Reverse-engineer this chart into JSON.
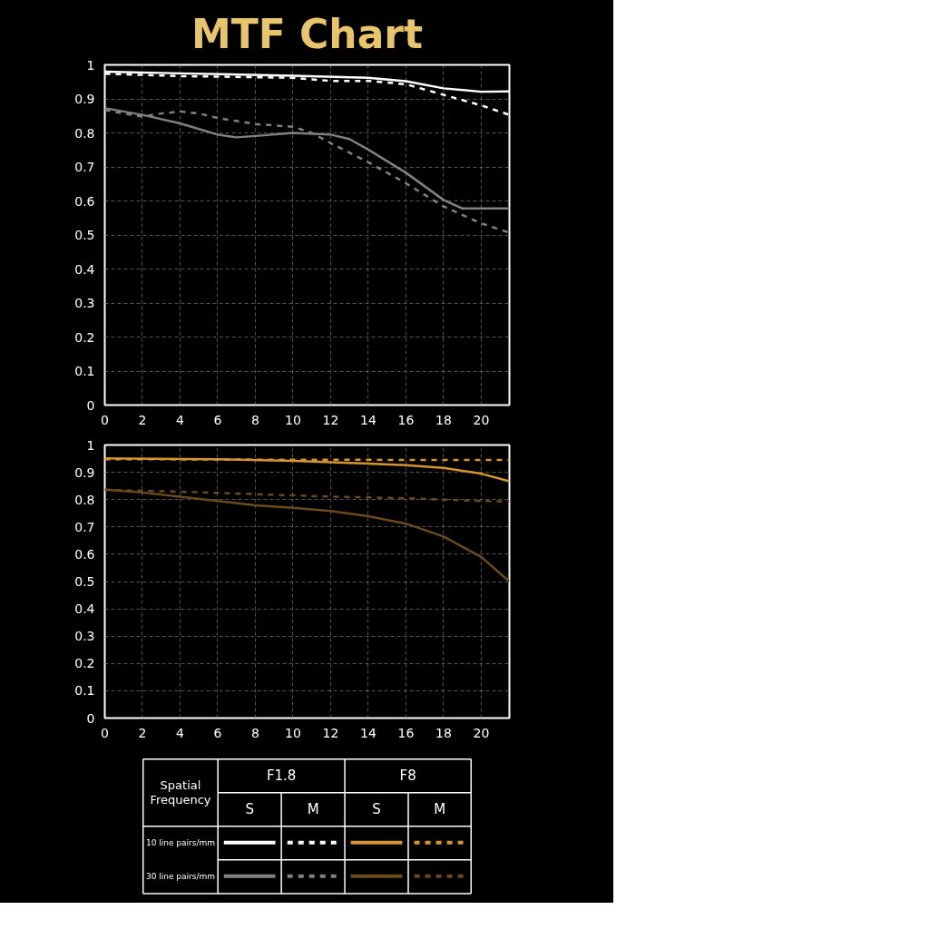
{
  "chart_data": [
    {
      "type": "line",
      "title": "MTF Chart",
      "xlim": [
        0,
        21.5
      ],
      "ylim": [
        0,
        1
      ],
      "xticks": [
        0,
        2,
        4,
        6,
        8,
        10,
        12,
        14,
        16,
        18,
        20
      ],
      "yticks": [
        0,
        0.1,
        0.2,
        0.3,
        0.4,
        0.5,
        0.6,
        0.7,
        0.8,
        0.9,
        1
      ],
      "grid": true,
      "series": [
        {
          "color": "#ffffff",
          "line_style": "solid",
          "x": [
            0,
            4,
            10,
            14,
            16,
            18,
            20,
            21.5
          ],
          "values": [
            0.98,
            0.975,
            0.968,
            0.962,
            0.952,
            0.931,
            0.921,
            0.922
          ]
        },
        {
          "color": "#ffffff",
          "line_style": "dashed",
          "x": [
            0,
            4,
            10,
            12,
            14,
            16,
            18,
            20,
            21.5
          ],
          "values": [
            0.974,
            0.967,
            0.962,
            0.953,
            0.953,
            0.943,
            0.912,
            0.881,
            0.853
          ]
        },
        {
          "color": "#808080",
          "line_style": "solid",
          "x": [
            0,
            2,
            4,
            6,
            7,
            8,
            10,
            12,
            13,
            14,
            16,
            18,
            19,
            20,
            21.5
          ],
          "values": [
            0.873,
            0.853,
            0.828,
            0.795,
            0.787,
            0.791,
            0.8,
            0.795,
            0.782,
            0.751,
            0.683,
            0.603,
            0.578,
            0.578,
            0.578
          ]
        },
        {
          "color": "#808080",
          "line_style": "dashed",
          "x": [
            0,
            2,
            3,
            4,
            5,
            6,
            8,
            10,
            11,
            12,
            14,
            16,
            18,
            20,
            21.5
          ],
          "values": [
            0.867,
            0.848,
            0.857,
            0.863,
            0.857,
            0.844,
            0.826,
            0.818,
            0.8,
            0.77,
            0.714,
            0.652,
            0.584,
            0.534,
            0.507
          ]
        }
      ]
    },
    {
      "type": "line",
      "xlim": [
        0,
        21.5
      ],
      "ylim": [
        0,
        1
      ],
      "xticks": [
        0,
        2,
        4,
        6,
        8,
        10,
        12,
        14,
        16,
        18,
        20
      ],
      "yticks": [
        0,
        0.1,
        0.2,
        0.3,
        0.4,
        0.5,
        0.6,
        0.7,
        0.8,
        0.9,
        1
      ],
      "grid": true,
      "series": [
        {
          "color": "#d6952f",
          "line_style": "solid",
          "x": [
            0,
            6,
            10,
            14,
            16,
            18,
            20,
            21.5
          ],
          "values": [
            0.951,
            0.948,
            0.942,
            0.932,
            0.926,
            0.916,
            0.895,
            0.867
          ]
        },
        {
          "color": "#d6952f",
          "line_style": "dashed",
          "x": [
            0,
            10,
            21.5
          ],
          "values": [
            0.948,
            0.946,
            0.945
          ]
        },
        {
          "color": "#6b4a1e",
          "line_style": "solid",
          "x": [
            0,
            2,
            4,
            6,
            8,
            10,
            12,
            14,
            16,
            18,
            20,
            21.5
          ],
          "values": [
            0.836,
            0.826,
            0.811,
            0.795,
            0.779,
            0.77,
            0.758,
            0.739,
            0.712,
            0.665,
            0.59,
            0.5
          ]
        },
        {
          "color": "#6b4a1e",
          "line_style": "dashed",
          "x": [
            0,
            4,
            8,
            12,
            16,
            20,
            21.5
          ],
          "values": [
            0.836,
            0.829,
            0.82,
            0.811,
            0.805,
            0.795,
            0.793
          ]
        }
      ]
    },
    {
      "type": "other",
      "annotations": [
        "Spatial\nFrequency",
        "F1.8",
        "F8",
        "S",
        "M",
        "S",
        "M",
        "10 line pairs/mm",
        "30 line pairs/mm"
      ]
    }
  ]
}
